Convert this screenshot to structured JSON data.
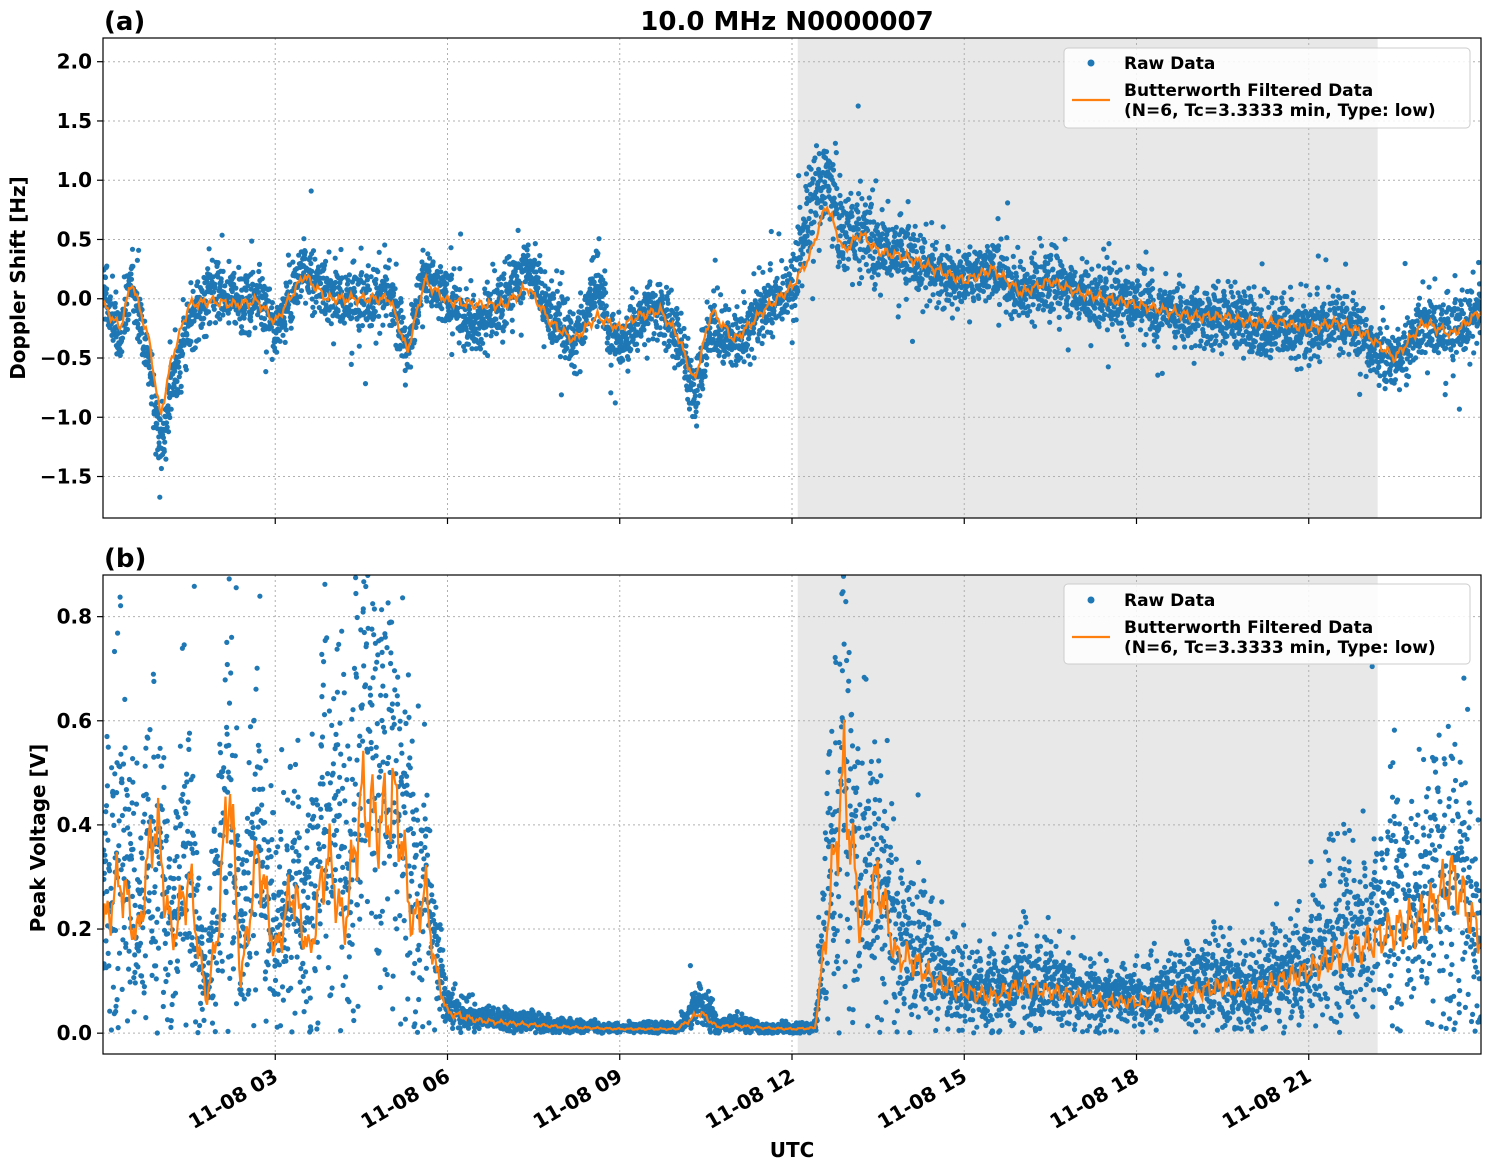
{
  "chart_data": [
    {
      "type": "line",
      "panel_label": "(a)",
      "title": "10.0 MHz N0000007",
      "ylabel": "Doppler Shift [Hz]",
      "xlabel": "",
      "x_range": [
        "11-08 00:00",
        "11-08 24:00"
      ],
      "ylim": [
        -1.85,
        2.2
      ],
      "yticks": [
        {
          "v": 2.0,
          "label": "2.0"
        },
        {
          "v": 1.5,
          "label": "1.5"
        },
        {
          "v": 1.0,
          "label": "1.0"
        },
        {
          "v": 0.5,
          "label": "0.5"
        },
        {
          "v": 0.0,
          "label": "0.0"
        },
        {
          "v": -0.5,
          "label": "−0.5"
        },
        {
          "v": -1.0,
          "label": "−1.0"
        },
        {
          "v": -1.5,
          "label": "−1.5"
        }
      ],
      "grid": true,
      "legend_position": "top-right",
      "shaded_interval": [
        "11-08 12:06",
        "11-08 22:12"
      ],
      "shading_color": "#e8e8e8",
      "series": [
        {
          "name": "Raw Data",
          "kind": "scatter",
          "color": "#1f77b4",
          "points": [
            [
              0.0,
              0.05
            ],
            [
              0.3,
              -0.35
            ],
            [
              0.5,
              0.2
            ],
            [
              0.8,
              -0.6
            ],
            [
              1.0,
              -1.25
            ],
            [
              1.2,
              -0.7
            ],
            [
              1.5,
              -0.2
            ],
            [
              1.9,
              0.1
            ],
            [
              2.3,
              -0.05
            ],
            [
              2.7,
              0.0
            ],
            [
              3.0,
              -0.25
            ],
            [
              3.5,
              0.25
            ],
            [
              3.9,
              0.05
            ],
            [
              4.5,
              -0.05
            ],
            [
              5.0,
              0.05
            ],
            [
              5.3,
              -0.45
            ],
            [
              5.6,
              0.2
            ],
            [
              6.0,
              0.0
            ],
            [
              6.5,
              -0.25
            ],
            [
              7.0,
              0.0
            ],
            [
              7.4,
              0.3
            ],
            [
              7.8,
              -0.1
            ],
            [
              8.2,
              -0.4
            ],
            [
              8.6,
              0.1
            ],
            [
              9.0,
              -0.45
            ],
            [
              9.3,
              -0.2
            ],
            [
              9.7,
              -0.1
            ],
            [
              10.0,
              -0.3
            ],
            [
              10.3,
              -0.85
            ],
            [
              10.6,
              -0.15
            ],
            [
              11.0,
              -0.4
            ],
            [
              11.5,
              -0.1
            ],
            [
              12.0,
              0.1
            ],
            [
              12.3,
              0.7
            ],
            [
              12.6,
              1.1
            ],
            [
              12.9,
              0.5
            ],
            [
              13.2,
              0.6
            ],
            [
              13.5,
              0.45
            ],
            [
              14.0,
              0.35
            ],
            [
              14.5,
              0.2
            ],
            [
              15.0,
              0.15
            ],
            [
              15.5,
              0.25
            ],
            [
              16.0,
              0.05
            ],
            [
              16.5,
              0.15
            ],
            [
              17.0,
              0.05
            ],
            [
              17.5,
              0.0
            ],
            [
              18.0,
              -0.05
            ],
            [
              18.5,
              -0.1
            ],
            [
              19.0,
              -0.2
            ],
            [
              19.5,
              -0.15
            ],
            [
              20.0,
              -0.2
            ],
            [
              20.5,
              -0.25
            ],
            [
              21.0,
              -0.3
            ],
            [
              21.5,
              -0.15
            ],
            [
              22.0,
              -0.35
            ],
            [
              22.5,
              -0.55
            ],
            [
              23.0,
              -0.2
            ],
            [
              23.5,
              -0.3
            ],
            [
              24.0,
              -0.1
            ]
          ]
        },
        {
          "name": "Butterworth Filtered Data\n(N=6, Tc=3.3333 min, Type: low)",
          "kind": "line",
          "color": "#ff7f0e",
          "points": [
            [
              0.0,
              -0.05
            ],
            [
              0.3,
              -0.25
            ],
            [
              0.5,
              0.15
            ],
            [
              0.8,
              -0.35
            ],
            [
              1.0,
              -1.0
            ],
            [
              1.2,
              -0.5
            ],
            [
              1.5,
              -0.05
            ],
            [
              1.9,
              -0.02
            ],
            [
              2.3,
              -0.05
            ],
            [
              2.7,
              -0.02
            ],
            [
              3.0,
              -0.2
            ],
            [
              3.5,
              0.2
            ],
            [
              3.9,
              0.0
            ],
            [
              4.5,
              0.0
            ],
            [
              5.0,
              0.0
            ],
            [
              5.3,
              -0.45
            ],
            [
              5.6,
              0.15
            ],
            [
              6.0,
              -0.02
            ],
            [
              6.5,
              -0.05
            ],
            [
              7.0,
              -0.05
            ],
            [
              7.4,
              0.1
            ],
            [
              7.8,
              -0.2
            ],
            [
              8.2,
              -0.35
            ],
            [
              8.6,
              -0.15
            ],
            [
              9.0,
              -0.25
            ],
            [
              9.3,
              -0.15
            ],
            [
              9.7,
              -0.1
            ],
            [
              10.0,
              -0.3
            ],
            [
              10.3,
              -0.7
            ],
            [
              10.6,
              -0.1
            ],
            [
              11.0,
              -0.35
            ],
            [
              11.5,
              -0.1
            ],
            [
              12.0,
              0.1
            ],
            [
              12.3,
              0.35
            ],
            [
              12.6,
              0.8
            ],
            [
              12.9,
              0.4
            ],
            [
              13.2,
              0.55
            ],
            [
              13.5,
              0.4
            ],
            [
              14.0,
              0.35
            ],
            [
              14.5,
              0.25
            ],
            [
              15.0,
              0.15
            ],
            [
              15.5,
              0.25
            ],
            [
              16.0,
              0.05
            ],
            [
              16.5,
              0.15
            ],
            [
              17.0,
              0.05
            ],
            [
              17.5,
              0.0
            ],
            [
              18.0,
              -0.05
            ],
            [
              18.5,
              -0.1
            ],
            [
              19.0,
              -0.15
            ],
            [
              19.5,
              -0.15
            ],
            [
              20.0,
              -0.2
            ],
            [
              20.5,
              -0.2
            ],
            [
              21.0,
              -0.25
            ],
            [
              21.5,
              -0.2
            ],
            [
              22.0,
              -0.3
            ],
            [
              22.5,
              -0.5
            ],
            [
              23.0,
              -0.2
            ],
            [
              23.5,
              -0.3
            ],
            [
              24.0,
              -0.1
            ]
          ]
        }
      ]
    },
    {
      "type": "line",
      "panel_label": "(b)",
      "title": "",
      "ylabel": "Peak Voltage [V]",
      "xlabel": "UTC",
      "x_range": [
        "11-08 00:00",
        "11-08 24:00"
      ],
      "ylim": [
        -0.04,
        0.88
      ],
      "yticks": [
        {
          "v": 0.8,
          "label": "0.8"
        },
        {
          "v": 0.6,
          "label": "0.6"
        },
        {
          "v": 0.4,
          "label": "0.4"
        },
        {
          "v": 0.2,
          "label": "0.2"
        },
        {
          "v": 0.0,
          "label": "0.0"
        }
      ],
      "xticks": [
        {
          "v": 3,
          "label": "11-08 03"
        },
        {
          "v": 6,
          "label": "11-08 06"
        },
        {
          "v": 9,
          "label": "11-08 09"
        },
        {
          "v": 12,
          "label": "11-08 12"
        },
        {
          "v": 15,
          "label": "11-08 15"
        },
        {
          "v": 18,
          "label": "11-08 18"
        },
        {
          "v": 21,
          "label": "11-08 21"
        }
      ],
      "grid": true,
      "legend_position": "top-right",
      "shaded_interval": [
        "11-08 12:06",
        "11-08 22:12"
      ],
      "shading_color": "#e8e8e8",
      "series": [
        {
          "name": "Raw Data",
          "kind": "scatter",
          "color": "#1f77b4",
          "points": [
            [
              0.0,
              0.25
            ],
            [
              0.3,
              0.45
            ],
            [
              0.6,
              0.2
            ],
            [
              0.9,
              0.4
            ],
            [
              1.2,
              0.2
            ],
            [
              1.5,
              0.35
            ],
            [
              1.8,
              0.08
            ],
            [
              2.0,
              0.3
            ],
            [
              2.2,
              0.55
            ],
            [
              2.4,
              0.15
            ],
            [
              2.7,
              0.4
            ],
            [
              3.0,
              0.2
            ],
            [
              3.3,
              0.3
            ],
            [
              3.6,
              0.2
            ],
            [
              3.9,
              0.5
            ],
            [
              4.2,
              0.3
            ],
            [
              4.5,
              0.6
            ],
            [
              4.8,
              0.5
            ],
            [
              5.1,
              0.55
            ],
            [
              5.4,
              0.3
            ],
            [
              5.6,
              0.3
            ],
            [
              5.8,
              0.15
            ],
            [
              6.0,
              0.05
            ],
            [
              6.5,
              0.03
            ],
            [
              7.0,
              0.025
            ],
            [
              8.0,
              0.015
            ],
            [
              9.0,
              0.01
            ],
            [
              10.0,
              0.01
            ],
            [
              10.4,
              0.06
            ],
            [
              10.7,
              0.015
            ],
            [
              11.0,
              0.02
            ],
            [
              11.5,
              0.01
            ],
            [
              12.0,
              0.01
            ],
            [
              12.4,
              0.012
            ],
            [
              12.6,
              0.25
            ],
            [
              12.9,
              0.55
            ],
            [
              13.2,
              0.25
            ],
            [
              13.5,
              0.35
            ],
            [
              13.8,
              0.2
            ],
            [
              14.1,
              0.18
            ],
            [
              14.5,
              0.12
            ],
            [
              15.0,
              0.09
            ],
            [
              15.5,
              0.08
            ],
            [
              16.0,
              0.1
            ],
            [
              16.5,
              0.09
            ],
            [
              17.0,
              0.08
            ],
            [
              17.5,
              0.07
            ],
            [
              18.0,
              0.07
            ],
            [
              18.5,
              0.08
            ],
            [
              19.0,
              0.09
            ],
            [
              19.5,
              0.1
            ],
            [
              20.0,
              0.09
            ],
            [
              20.5,
              0.12
            ],
            [
              21.0,
              0.14
            ],
            [
              21.5,
              0.18
            ],
            [
              22.0,
              0.2
            ],
            [
              22.5,
              0.25
            ],
            [
              23.0,
              0.25
            ],
            [
              23.5,
              0.35
            ],
            [
              24.0,
              0.2
            ]
          ]
        },
        {
          "name": "Butterworth Filtered Data\n(N=6, Tc=3.3333 min, Type: low)",
          "kind": "line",
          "color": "#ff7f0e",
          "points": [
            [
              0.0,
              0.2
            ],
            [
              0.3,
              0.3
            ],
            [
              0.6,
              0.18
            ],
            [
              0.9,
              0.42
            ],
            [
              1.2,
              0.18
            ],
            [
              1.5,
              0.3
            ],
            [
              1.8,
              0.06
            ],
            [
              2.0,
              0.2
            ],
            [
              2.2,
              0.5
            ],
            [
              2.4,
              0.1
            ],
            [
              2.7,
              0.35
            ],
            [
              3.0,
              0.15
            ],
            [
              3.3,
              0.28
            ],
            [
              3.6,
              0.15
            ],
            [
              3.9,
              0.35
            ],
            [
              4.2,
              0.2
            ],
            [
              4.5,
              0.45
            ],
            [
              4.8,
              0.4
            ],
            [
              5.1,
              0.45
            ],
            [
              5.4,
              0.2
            ],
            [
              5.6,
              0.28
            ],
            [
              5.8,
              0.12
            ],
            [
              6.0,
              0.04
            ],
            [
              6.5,
              0.025
            ],
            [
              7.0,
              0.02
            ],
            [
              8.0,
              0.012
            ],
            [
              9.0,
              0.008
            ],
            [
              10.0,
              0.008
            ],
            [
              10.4,
              0.04
            ],
            [
              10.7,
              0.012
            ],
            [
              11.0,
              0.015
            ],
            [
              11.5,
              0.01
            ],
            [
              12.0,
              0.008
            ],
            [
              12.4,
              0.01
            ],
            [
              12.6,
              0.2
            ],
            [
              12.9,
              0.5
            ],
            [
              13.2,
              0.2
            ],
            [
              13.5,
              0.3
            ],
            [
              13.8,
              0.15
            ],
            [
              14.1,
              0.14
            ],
            [
              14.5,
              0.1
            ],
            [
              15.0,
              0.08
            ],
            [
              15.5,
              0.07
            ],
            [
              16.0,
              0.09
            ],
            [
              16.5,
              0.08
            ],
            [
              17.0,
              0.07
            ],
            [
              17.5,
              0.06
            ],
            [
              18.0,
              0.06
            ],
            [
              18.5,
              0.07
            ],
            [
              19.0,
              0.08
            ],
            [
              19.5,
              0.09
            ],
            [
              20.0,
              0.08
            ],
            [
              20.5,
              0.1
            ],
            [
              21.0,
              0.12
            ],
            [
              21.5,
              0.15
            ],
            [
              22.0,
              0.17
            ],
            [
              22.5,
              0.2
            ],
            [
              23.0,
              0.22
            ],
            [
              23.5,
              0.3
            ],
            [
              24.0,
              0.18
            ]
          ]
        }
      ]
    }
  ]
}
